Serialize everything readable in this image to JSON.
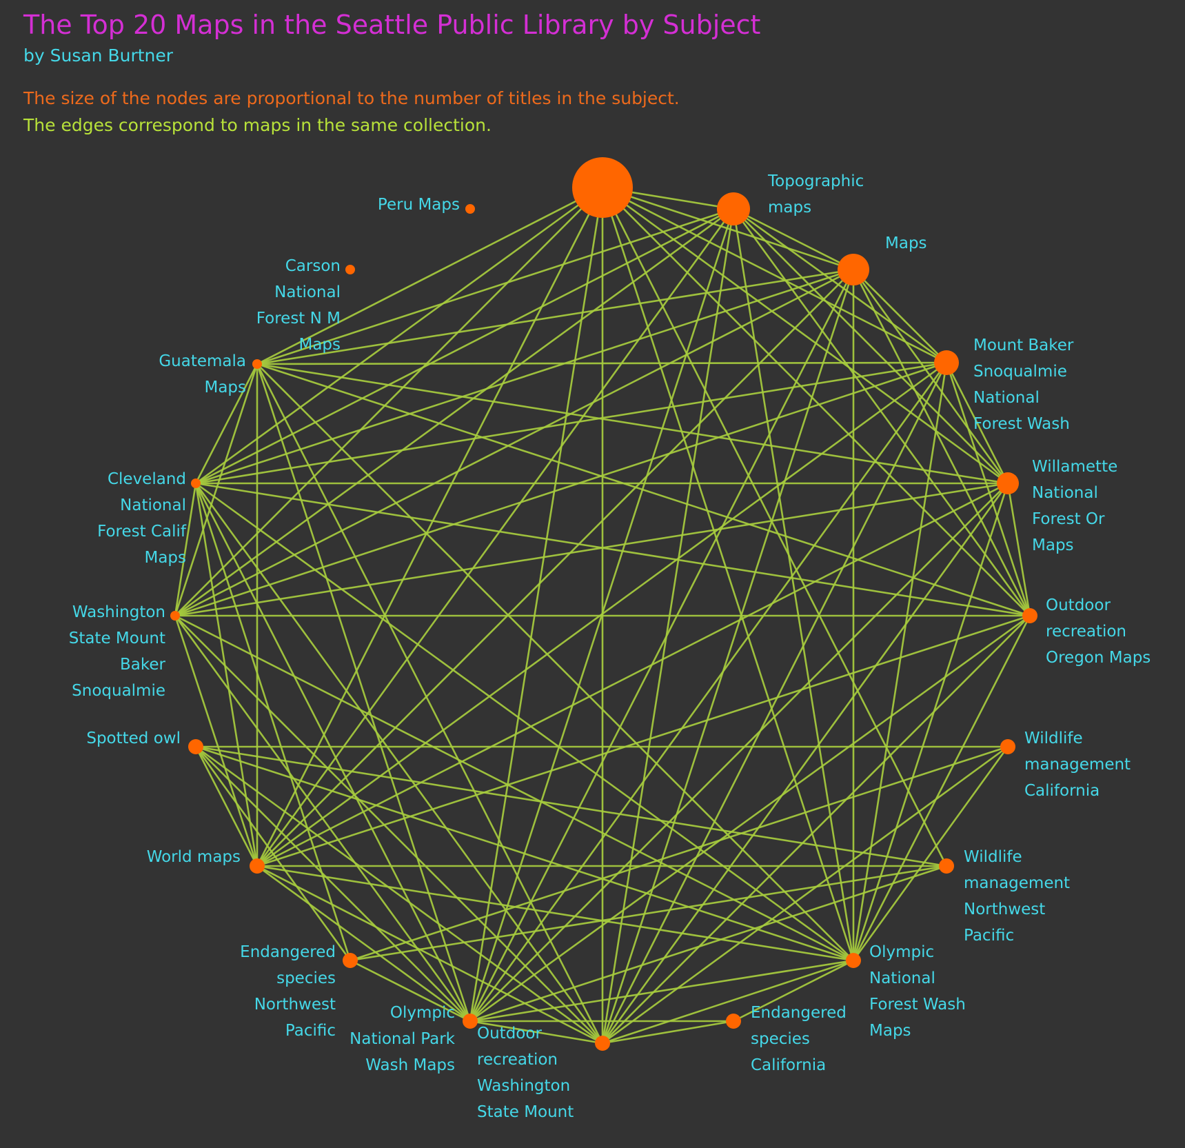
{
  "header": {
    "title": "The Top 20 Maps in the Seattle Public Library by Subject",
    "author": "by Susan Burtner",
    "description_size": "The size of the nodes are proportional to the number of titles in the subject.",
    "description_edges": "The edges correspond to maps in the same collection."
  },
  "colors": {
    "background": "#333333",
    "title": "#d42fd4",
    "author": "#45d8e8",
    "size_note": "#ee6a1c",
    "edge_note": "#b8e23a",
    "node": "#ff6600",
    "edge": "#a7cc3e",
    "label": "#45d8e8"
  },
  "graph": {
    "layout": "circular",
    "nodes": [
      {
        "id": "top",
        "label": ""
      },
      {
        "id": "topographic",
        "label": "Topographic maps"
      },
      {
        "id": "maps",
        "label": "Maps"
      },
      {
        "id": "mount-baker",
        "label": "Mount Baker Snoqualmie National Forest Wash"
      },
      {
        "id": "willamette",
        "label": "Willamette National Forest Or Maps"
      },
      {
        "id": "outdoor-oregon",
        "label": "Outdoor recreation Oregon Maps"
      },
      {
        "id": "wildlife-california",
        "label": "Wildlife management California"
      },
      {
        "id": "wildlife-nw",
        "label": "Wildlife management Northwest Pacific"
      },
      {
        "id": "olympic-forest",
        "label": "Olympic National Forest Wash Maps"
      },
      {
        "id": "endangered-california",
        "label": "Endangered species California"
      },
      {
        "id": "outdoor-washington",
        "label": "Outdoor recreation Washington State Mount"
      },
      {
        "id": "olympic-park",
        "label": "Olympic National Park Wash Maps"
      },
      {
        "id": "endangered-nw",
        "label": "Endangered species Northwest Pacific"
      },
      {
        "id": "world-maps",
        "label": "World maps"
      },
      {
        "id": "spotted-owl",
        "label": "Spotted owl"
      },
      {
        "id": "washington-state",
        "label": "Washington State Mount Baker Snoqualmie"
      },
      {
        "id": "cleveland",
        "label": "Cleveland National Forest Calif Maps"
      },
      {
        "id": "guatemala",
        "label": "Guatemala Maps"
      },
      {
        "id": "carson",
        "label": "Carson National Forest N M Maps"
      },
      {
        "id": "peru",
        "label": "Peru Maps"
      }
    ],
    "edges": [
      [
        "top",
        "topographic"
      ],
      [
        "top",
        "maps"
      ],
      [
        "top",
        "mount-baker"
      ],
      [
        "top",
        "willamette"
      ],
      [
        "top",
        "outdoor-oregon"
      ],
      [
        "top",
        "wildlife-nw"
      ],
      [
        "top",
        "olympic-forest"
      ],
      [
        "top",
        "outdoor-washington"
      ],
      [
        "top",
        "olympic-park"
      ],
      [
        "top",
        "world-maps"
      ],
      [
        "top",
        "washington-state"
      ],
      [
        "top",
        "cleveland"
      ],
      [
        "top",
        "guatemala"
      ],
      [
        "topographic",
        "maps"
      ],
      [
        "topographic",
        "mount-baker"
      ],
      [
        "topographic",
        "willamette"
      ],
      [
        "topographic",
        "outdoor-oregon"
      ],
      [
        "topographic",
        "olympic-forest"
      ],
      [
        "topographic",
        "outdoor-washington"
      ],
      [
        "topographic",
        "olympic-park"
      ],
      [
        "topographic",
        "world-maps"
      ],
      [
        "topographic",
        "washington-state"
      ],
      [
        "topographic",
        "cleveland"
      ],
      [
        "topographic",
        "guatemala"
      ],
      [
        "maps",
        "mount-baker"
      ],
      [
        "maps",
        "willamette"
      ],
      [
        "maps",
        "outdoor-oregon"
      ],
      [
        "maps",
        "olympic-forest"
      ],
      [
        "maps",
        "outdoor-washington"
      ],
      [
        "maps",
        "olympic-park"
      ],
      [
        "maps",
        "world-maps"
      ],
      [
        "maps",
        "washington-state"
      ],
      [
        "maps",
        "cleveland"
      ],
      [
        "maps",
        "guatemala"
      ],
      [
        "mount-baker",
        "willamette"
      ],
      [
        "mount-baker",
        "outdoor-oregon"
      ],
      [
        "mount-baker",
        "olympic-forest"
      ],
      [
        "mount-baker",
        "outdoor-washington"
      ],
      [
        "mount-baker",
        "olympic-park"
      ],
      [
        "mount-baker",
        "world-maps"
      ],
      [
        "mount-baker",
        "washington-state"
      ],
      [
        "mount-baker",
        "cleveland"
      ],
      [
        "mount-baker",
        "guatemala"
      ],
      [
        "willamette",
        "outdoor-oregon"
      ],
      [
        "willamette",
        "olympic-forest"
      ],
      [
        "willamette",
        "outdoor-washington"
      ],
      [
        "willamette",
        "olympic-park"
      ],
      [
        "willamette",
        "world-maps"
      ],
      [
        "willamette",
        "washington-state"
      ],
      [
        "willamette",
        "cleveland"
      ],
      [
        "willamette",
        "guatemala"
      ],
      [
        "outdoor-oregon",
        "olympic-forest"
      ],
      [
        "outdoor-oregon",
        "outdoor-washington"
      ],
      [
        "outdoor-oregon",
        "olympic-park"
      ],
      [
        "outdoor-oregon",
        "world-maps"
      ],
      [
        "outdoor-oregon",
        "washington-state"
      ],
      [
        "outdoor-oregon",
        "cleveland"
      ],
      [
        "outdoor-oregon",
        "guatemala"
      ],
      [
        "wildlife-california",
        "spotted-owl"
      ],
      [
        "wildlife-california",
        "endangered-nw"
      ],
      [
        "wildlife-california",
        "olympic-forest"
      ],
      [
        "wildlife-california",
        "outdoor-washington"
      ],
      [
        "wildlife-nw",
        "spotted-owl"
      ],
      [
        "wildlife-nw",
        "endangered-nw"
      ],
      [
        "wildlife-nw",
        "olympic-park"
      ],
      [
        "wildlife-nw",
        "world-maps"
      ],
      [
        "olympic-forest",
        "olympic-park"
      ],
      [
        "olympic-forest",
        "world-maps"
      ],
      [
        "olympic-forest",
        "endangered-california"
      ],
      [
        "olympic-forest",
        "outdoor-washington"
      ],
      [
        "olympic-forest",
        "washington-state"
      ],
      [
        "olympic-forest",
        "cleveland"
      ],
      [
        "olympic-forest",
        "guatemala"
      ],
      [
        "olympic-forest",
        "spotted-owl"
      ],
      [
        "endangered-california",
        "outdoor-washington"
      ],
      [
        "endangered-california",
        "olympic-park"
      ],
      [
        "outdoor-washington",
        "olympic-park"
      ],
      [
        "outdoor-washington",
        "world-maps"
      ],
      [
        "outdoor-washington",
        "washington-state"
      ],
      [
        "outdoor-washington",
        "cleveland"
      ],
      [
        "outdoor-washington",
        "guatemala"
      ],
      [
        "outdoor-washington",
        "spotted-owl"
      ],
      [
        "olympic-park",
        "world-maps"
      ],
      [
        "olympic-park",
        "washington-state"
      ],
      [
        "olympic-park",
        "cleveland"
      ],
      [
        "olympic-park",
        "guatemala"
      ],
      [
        "olympic-park",
        "endangered-nw"
      ],
      [
        "olympic-park",
        "spotted-owl"
      ],
      [
        "endangered-nw",
        "spotted-owl"
      ],
      [
        "endangered-nw",
        "cleveland"
      ],
      [
        "world-maps",
        "washington-state"
      ],
      [
        "world-maps",
        "cleveland"
      ],
      [
        "world-maps",
        "guatemala"
      ],
      [
        "world-maps",
        "spotted-owl"
      ],
      [
        "washington-state",
        "cleveland"
      ],
      [
        "washington-state",
        "guatemala"
      ],
      [
        "cleveland",
        "guatemala"
      ]
    ]
  }
}
